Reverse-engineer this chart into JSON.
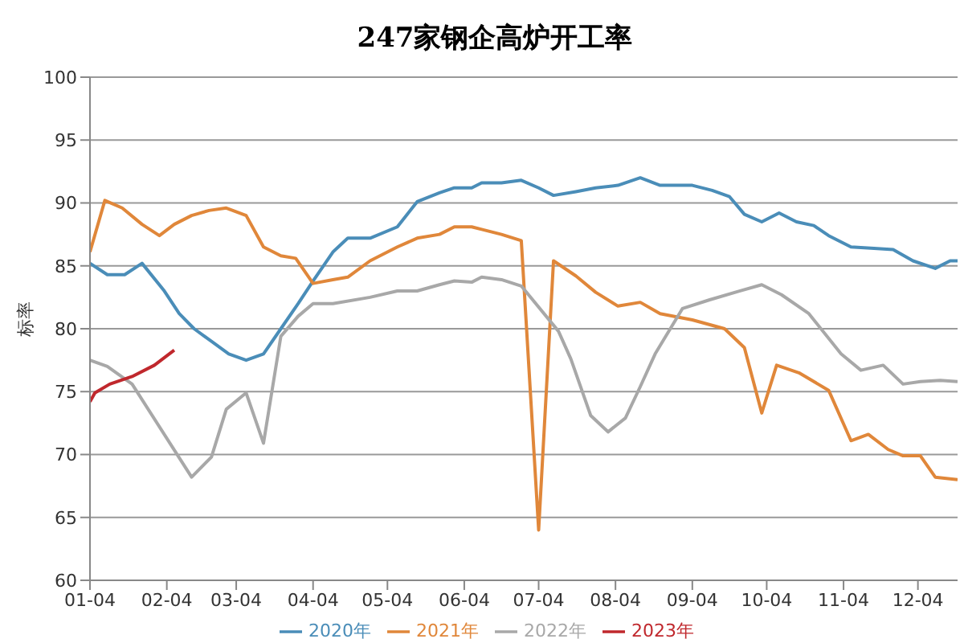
{
  "chart_data": {
    "type": "line",
    "title": "247家钢企高炉开工率",
    "ylabel": "标率",
    "xlim": [
      "--01-04",
      "--12-20"
    ],
    "ylim": [
      60,
      100
    ],
    "yticks": [
      60,
      65,
      70,
      75,
      80,
      85,
      90,
      95,
      100
    ],
    "xticks": [
      {
        "value": "--01-04",
        "label": "01-04"
      },
      {
        "value": "--02-04",
        "label": "02-04"
      },
      {
        "value": "--03-04",
        "label": "03-04"
      },
      {
        "value": "--04-04",
        "label": "04-04"
      },
      {
        "value": "--05-04",
        "label": "05-04"
      },
      {
        "value": "--06-04",
        "label": "06-04"
      },
      {
        "value": "--07-04",
        "label": "07-04"
      },
      {
        "value": "--08-04",
        "label": "08-04"
      },
      {
        "value": "--09-04",
        "label": "09-04"
      },
      {
        "value": "--10-04",
        "label": "10-04"
      },
      {
        "value": "--11-04",
        "label": "11-04"
      },
      {
        "value": "--12-04",
        "label": "12-04"
      }
    ],
    "grid": "y",
    "legend": "bottom",
    "marker": "none",
    "line_style": "solid",
    "series": [
      {
        "name": "2020年",
        "color": "#4a8db8",
        "x": [
          "--01-04",
          "--01-11",
          "--01-18",
          "--01-25",
          "--02-03",
          "--02-09",
          "--02-15",
          "--02-22",
          "--03-01",
          "--03-08",
          "--03-15",
          "--03-22",
          "--03-29",
          "--04-04",
          "--04-12",
          "--04-18",
          "--04-27",
          "--05-08",
          "--05-16",
          "--05-25",
          "--05-31",
          "--06-07",
          "--06-11",
          "--06-19",
          "--06-27",
          "--07-04",
          "--07-10",
          "--07-19",
          "--07-27",
          "--08-05",
          "--08-14",
          "--08-22",
          "--09-04",
          "--09-12",
          "--09-19",
          "--09-25",
          "--10-02",
          "--10-09",
          "--10-16",
          "--10-23",
          "--10-29",
          "--11-07",
          "--11-15",
          "--11-24",
          "--12-02",
          "--12-11",
          "--12-17",
          "--12-20"
        ],
        "values": [
          85.2,
          84.3,
          84.3,
          85.2,
          83.0,
          81.2,
          80,
          79,
          78,
          77.5,
          78,
          80,
          82,
          83.8,
          86.1,
          87.2,
          87.2,
          88.1,
          90.1,
          90.8,
          91.2,
          91.2,
          91.6,
          91.6,
          91.8,
          91.2,
          90.6,
          90.9,
          91.2,
          91.4,
          92.0,
          91.4,
          91.4,
          91.0,
          90.5,
          89.1,
          88.5,
          89.2,
          88.5,
          88.2,
          87.4,
          86.5,
          86.4,
          86.3,
          85.4,
          84.8,
          85.4,
          85.4
        ]
      },
      {
        "name": "2021年",
        "color": "#e0873a",
        "x": [
          "--01-04",
          "--01-10",
          "--01-17",
          "--01-25",
          "--02-01",
          "--02-07",
          "--02-14",
          "--02-21",
          "--02-28",
          "--03-08",
          "--03-15",
          "--03-22",
          "--03-28",
          "--04-04",
          "--04-12",
          "--04-18",
          "--04-27",
          "--05-08",
          "--05-16",
          "--05-25",
          "--05-31",
          "--06-07",
          "--06-11",
          "--06-19",
          "--06-27",
          "--07-04",
          "--07-10",
          "--07-19",
          "--07-27",
          "--08-05",
          "--08-14",
          "--08-22",
          "--09-04",
          "--09-17",
          "--09-25",
          "--10-02",
          "--10-08",
          "--10-17",
          "--10-29",
          "--11-07",
          "--11-14",
          "--11-22",
          "--11-28",
          "--12-05",
          "--12-11",
          "--12-20"
        ],
        "values": [
          86.1,
          90.2,
          89.6,
          88.3,
          87.4,
          88.3,
          89.0,
          89.4,
          89.6,
          89.0,
          86.5,
          85.8,
          85.6,
          83.6,
          83.9,
          84.1,
          85.4,
          86.5,
          87.2,
          87.5,
          88.1,
          88.1,
          87.9,
          87.5,
          87.0,
          64.0,
          85.4,
          84.2,
          82.9,
          81.8,
          82.1,
          81.2,
          80.7,
          80.0,
          78.5,
          73.3,
          77.1,
          76.5,
          75.1,
          71.1,
          71.6,
          70.4,
          69.9,
          69.9,
          68.2,
          68.0
        ]
      },
      {
        "name": "2022年",
        "color": "#a8a8a8",
        "x": [
          "--01-04",
          "--01-11",
          "--01-21",
          "--02-14",
          "--02-22",
          "--02-28",
          "--03-08",
          "--03-15",
          "--03-22",
          "--03-29",
          "--04-04",
          "--04-12",
          "--04-27",
          "--05-08",
          "--05-16",
          "--05-25",
          "--05-31",
          "--06-07",
          "--06-11",
          "--06-19",
          "--06-27",
          "--07-12",
          "--07-17",
          "--07-25",
          "--08-01",
          "--08-08",
          "--08-14",
          "--08-20",
          "--08-31",
          "--09-11",
          "--09-23",
          "--10-02",
          "--10-10",
          "--10-21",
          "--11-03",
          "--11-11",
          "--11-20",
          "--11-28",
          "--12-05",
          "--12-13",
          "--12-20"
        ],
        "values": [
          77.5,
          77,
          75.6,
          68.2,
          69.8,
          73.6,
          74.9,
          70.9,
          79.4,
          81,
          82,
          82,
          82.5,
          83,
          83,
          83.5,
          83.8,
          83.7,
          84.1,
          83.9,
          83.4,
          79.8,
          77.6,
          73.1,
          71.8,
          72.9,
          75.4,
          78.0,
          81.6,
          82.3,
          83.0,
          83.5,
          82.7,
          81.2,
          78.0,
          76.7,
          77.1,
          75.6,
          75.8,
          75.9,
          75.8
        ]
      },
      {
        "name": "2023年",
        "color": "#c0282d",
        "x": [
          "--01-04",
          "--01-06",
          "--01-12",
          "--01-21",
          "--01-30",
          "--02-07"
        ],
        "values": [
          74.2,
          74.9,
          75.6,
          76.2,
          77.1,
          78.3
        ]
      }
    ]
  }
}
